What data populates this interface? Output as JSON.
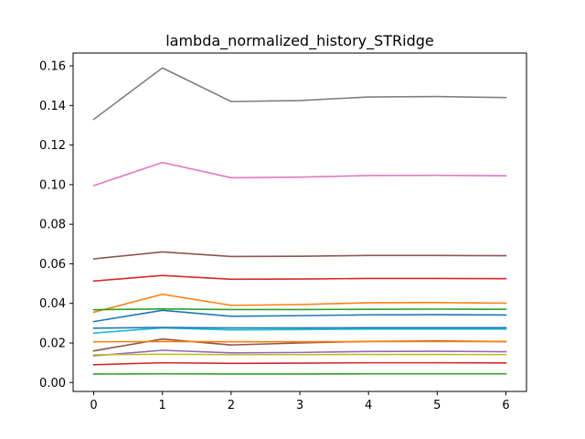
{
  "chart_data": {
    "type": "line",
    "title": "lambda_normalized_history_STRidge",
    "xlabel": "",
    "ylabel": "",
    "x": [
      0,
      1,
      2,
      3,
      4,
      5,
      6
    ],
    "xlim": [
      -0.3,
      6.3
    ],
    "ylim": [
      -0.0045,
      0.1665
    ],
    "xticks": [
      0,
      1,
      2,
      3,
      4,
      5,
      6
    ],
    "yticks": [
      "0.00",
      "0.02",
      "0.04",
      "0.06",
      "0.08",
      "0.10",
      "0.12",
      "0.14",
      "0.16"
    ],
    "grid": false,
    "legend": "none",
    "series": [
      {
        "color": "#1f77b4",
        "values": [
          0.0308,
          0.0365,
          0.0335,
          0.0338,
          0.0342,
          0.0343,
          0.0341
        ]
      },
      {
        "color": "#ff7f0e",
        "values": [
          0.0355,
          0.0446,
          0.039,
          0.0394,
          0.0403,
          0.0404,
          0.0401
        ]
      },
      {
        "color": "#2ca02c",
        "values": [
          0.0043,
          0.0044,
          0.0043,
          0.0043,
          0.0044,
          0.0044,
          0.0044
        ]
      },
      {
        "color": "#d62728",
        "values": [
          0.009,
          0.01,
          0.0097,
          0.0098,
          0.01,
          0.01,
          0.0099
        ]
      },
      {
        "color": "#9467bd",
        "values": [
          0.0135,
          0.0163,
          0.015,
          0.0152,
          0.0157,
          0.0158,
          0.0156
        ]
      },
      {
        "color": "#8c564b",
        "values": [
          0.016,
          0.022,
          0.019,
          0.02,
          0.0208,
          0.021,
          0.0207
        ]
      },
      {
        "color": "#e377c2",
        "values": [
          0.0995,
          0.1112,
          0.1035,
          0.1038,
          0.1046,
          0.1047,
          0.1045
        ]
      },
      {
        "color": "#7f7f7f",
        "values": [
          0.133,
          0.159,
          0.142,
          0.1425,
          0.1443,
          0.1445,
          0.144
        ]
      },
      {
        "color": "#bcbd22",
        "values": [
          0.014,
          0.0143,
          0.0141,
          0.0141,
          0.0142,
          0.0142,
          0.0141
        ]
      },
      {
        "color": "#17becf",
        "values": [
          0.025,
          0.0276,
          0.0266,
          0.0268,
          0.027,
          0.027,
          0.027
        ]
      },
      {
        "color": "#1f77b4",
        "values": [
          0.0275,
          0.0278,
          0.0276,
          0.0276,
          0.0277,
          0.0277,
          0.0277
        ]
      },
      {
        "color": "#ff7f0e",
        "values": [
          0.0206,
          0.0207,
          0.0206,
          0.0206,
          0.0207,
          0.0207,
          0.0207
        ]
      },
      {
        "color": "#2ca02c",
        "values": [
          0.0368,
          0.0372,
          0.0369,
          0.0369,
          0.037,
          0.0371,
          0.037
        ]
      },
      {
        "color": "#d62728",
        "values": [
          0.0513,
          0.0541,
          0.0522,
          0.0523,
          0.0526,
          0.0526,
          0.0525
        ]
      },
      {
        "color": "#8c564b",
        "values": [
          0.0625,
          0.066,
          0.0637,
          0.0638,
          0.0642,
          0.0642,
          0.0641
        ]
      }
    ]
  }
}
